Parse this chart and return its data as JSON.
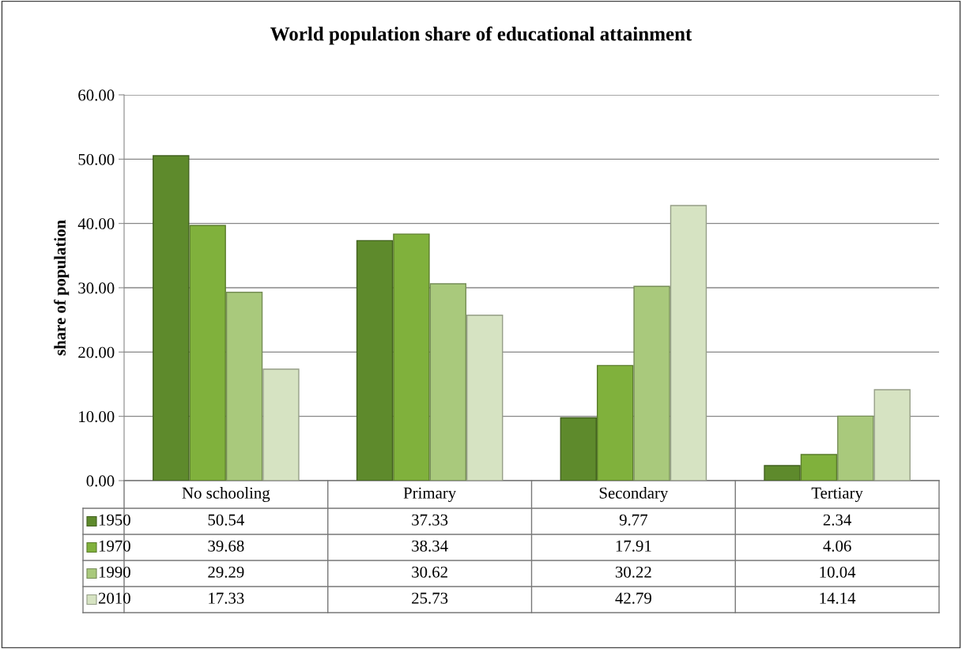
{
  "chart_data": {
    "type": "bar",
    "title": "World population share of educational attainment",
    "ylabel": "share of population",
    "categories": [
      "No schooling",
      "Primary",
      "Secondary",
      "Tertiary"
    ],
    "series": [
      {
        "name": "1950",
        "color": "#5e8a2c",
        "values": [
          50.54,
          37.33,
          9.77,
          2.34
        ]
      },
      {
        "name": "1970",
        "color": "#80b13c",
        "values": [
          39.68,
          38.34,
          17.91,
          4.06
        ]
      },
      {
        "name": "1990",
        "color": "#a9c97c",
        "values": [
          29.29,
          30.62,
          30.22,
          10.04
        ]
      },
      {
        "name": "2010",
        "color": "#d6e3c2",
        "values": [
          17.33,
          25.73,
          42.79,
          14.14
        ]
      }
    ],
    "ylim": [
      0,
      60
    ],
    "yticks": [
      {
        "value": 0,
        "label": "0.00"
      },
      {
        "value": 10,
        "label": "10.00"
      },
      {
        "value": 20,
        "label": "20.00"
      },
      {
        "value": 30,
        "label": "30.00"
      },
      {
        "value": 40,
        "label": "40.00"
      },
      {
        "value": 50,
        "label": "50.00"
      },
      {
        "value": 60,
        "label": "60.00"
      }
    ],
    "grid": "y",
    "data_labels": true,
    "legend": "bottom"
  }
}
